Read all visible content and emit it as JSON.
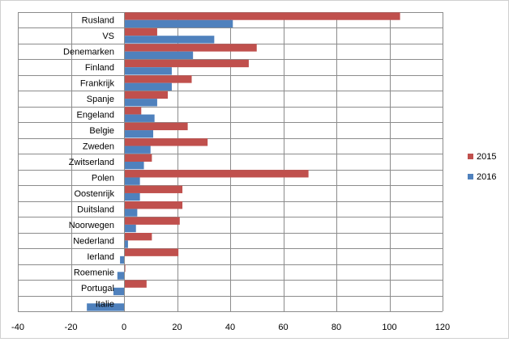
{
  "chart_data": {
    "type": "bar",
    "orientation": "horizontal",
    "title": "",
    "xlabel": "",
    "ylabel": "",
    "categories": [
      "Rusland",
      "VS",
      "Denemarken",
      "Finland",
      "Frankrijk",
      "Spanje",
      "Engeland",
      "Belgie",
      "Zweden",
      "Zwitserland",
      "Polen",
      "Oostenrijk",
      "Duitsland",
      "Noorwegen",
      "Nederland",
      "Ierland",
      "Roemenie",
      "Portugal",
      "Italie"
    ],
    "series": [
      {
        "name": "2015",
        "color": "#c0504d",
        "values": [
          104,
          12.5,
          50,
          47,
          25.5,
          16.5,
          6.5,
          24,
          31.5,
          10.5,
          69.5,
          22,
          22,
          21,
          10.5,
          20.5,
          0.5,
          8.5,
          0
        ]
      },
      {
        "name": "2016",
        "color": "#4f81bd",
        "values": [
          41,
          34,
          26,
          18,
          18,
          12.5,
          11.5,
          11,
          10,
          7.5,
          6,
          6,
          5,
          4.5,
          1.5,
          -1.5,
          -2.5,
          -4,
          -14
        ]
      }
    ],
    "xlim": [
      -40,
      120
    ],
    "xticks": [
      -40,
      -20,
      0,
      20,
      40,
      60,
      80,
      100,
      120
    ],
    "grid": true,
    "legend": {
      "position": "right",
      "entries": [
        "2015",
        "2016"
      ]
    }
  }
}
